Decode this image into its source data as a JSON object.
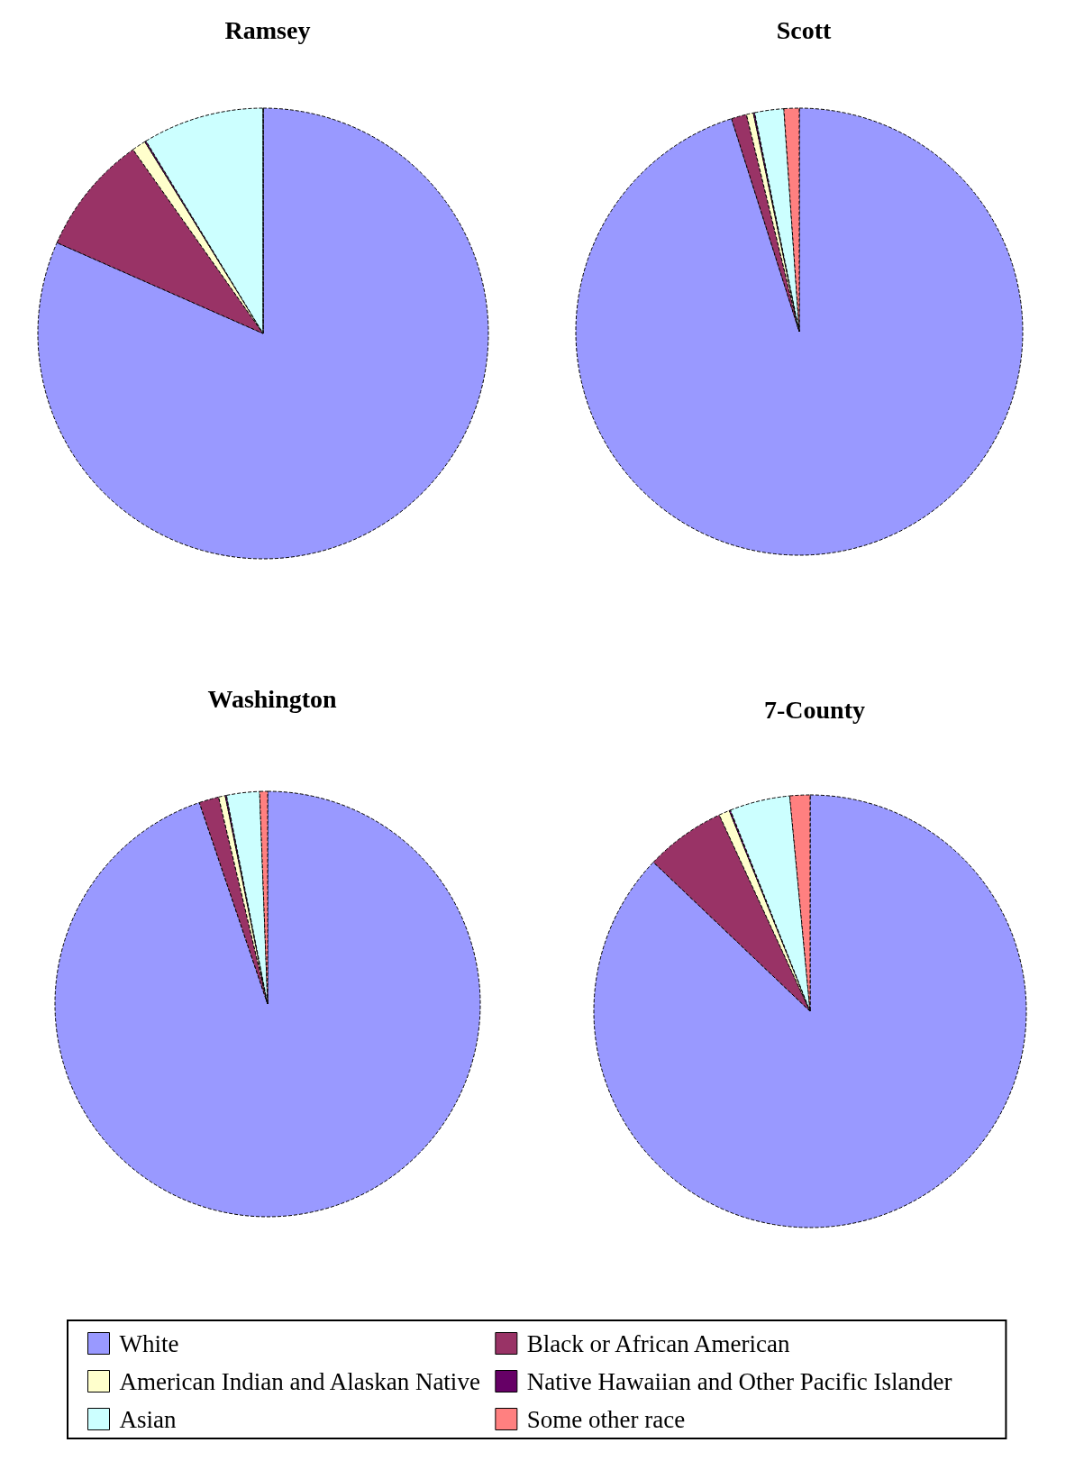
{
  "chart_data": [
    {
      "type": "pie",
      "title": "Ramsey",
      "categories": [
        null,
        null,
        null,
        null,
        null,
        null
      ],
      "values": [
        81.6,
        8.6,
        1.0,
        0.1,
        8.7,
        0
      ],
      "colors": [
        "#9999ff",
        "#993366",
        "#ffffcc",
        "#660066",
        "#ccffff",
        "#ff8080"
      ],
      "legend": false
    },
    {
      "type": "pie",
      "title": "Scott",
      "categories": [
        null,
        null,
        null,
        null,
        null,
        null
      ],
      "values": [
        95.1,
        1.1,
        0.5,
        0.1,
        2.1,
        1.1
      ],
      "colors": [
        "#9999ff",
        "#993366",
        "#ffffcc",
        "#660066",
        "#ccffff",
        "#ff8080"
      ],
      "legend": false
    },
    {
      "type": "pie",
      "title": "Washington",
      "categories": [
        null,
        null,
        null,
        null,
        null,
        null
      ],
      "values": [
        94.8,
        1.5,
        0.5,
        0.1,
        2.5,
        0.6
      ],
      "colors": [
        "#9999ff",
        "#993366",
        "#ffffcc",
        "#660066",
        "#ccffff",
        "#ff8080"
      ],
      "legend": false
    },
    {
      "type": "pie",
      "title": "7-County",
      "categories": [
        "White",
        "Black or African American",
        "American Indian and Alaskan Native",
        "Native Hawaiian and Other Pacific Islander",
        "Asian",
        "Some other race"
      ],
      "values": [
        87.1,
        6.0,
        0.8,
        0.1,
        4.5,
        1.5
      ],
      "colors": [
        "#9999ff",
        "#993366",
        "#ffffcc",
        "#660066",
        "#ccffff",
        "#ff8080"
      ],
      "legend": "bottom"
    }
  ]
}
